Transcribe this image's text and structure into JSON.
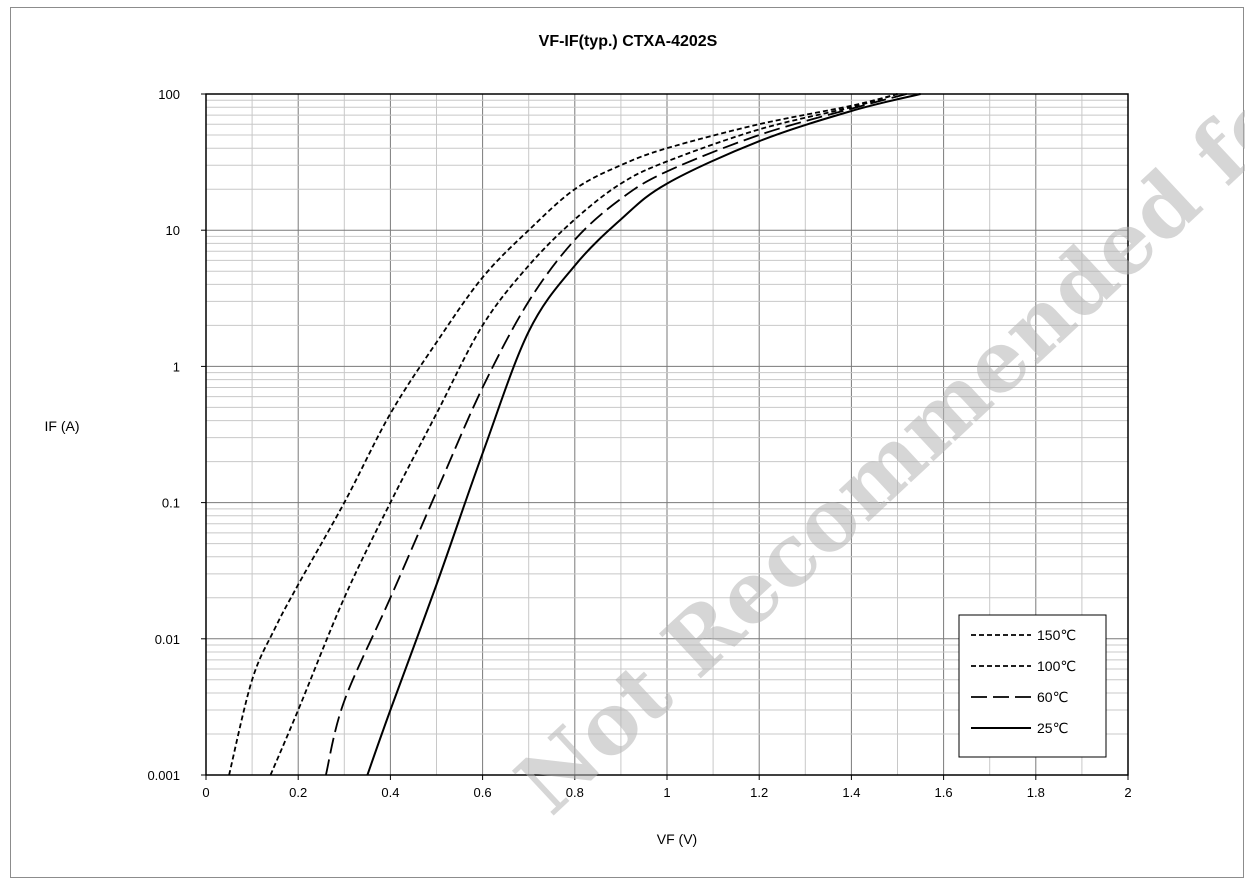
{
  "chart_data": {
    "type": "line",
    "title": "VF-IF(typ.) CTXA-4202S",
    "xlabel": "VF (V)",
    "ylabel": "IF (A)",
    "x_scale": "linear",
    "y_scale": "log",
    "xlim": [
      0,
      2
    ],
    "ylim": [
      0.001,
      100
    ],
    "x_ticks": [
      "0",
      "0.2",
      "0.4",
      "0.6",
      "0.8",
      "1",
      "1.2",
      "1.4",
      "1.6",
      "1.8",
      "2"
    ],
    "y_ticks": [
      "0.001",
      "0.01",
      "0.1",
      "1",
      "10",
      "100"
    ],
    "grid": true,
    "legend_position": "bottom-right",
    "series": [
      {
        "name": "150℃",
        "style": "short-dash",
        "points": [
          [
            0.05,
            0.001
          ],
          [
            0.1,
            0.005
          ],
          [
            0.15,
            0.012
          ],
          [
            0.2,
            0.025
          ],
          [
            0.3,
            0.1
          ],
          [
            0.4,
            0.45
          ],
          [
            0.5,
            1.5
          ],
          [
            0.6,
            4.5
          ],
          [
            0.7,
            10
          ],
          [
            0.8,
            20
          ],
          [
            0.9,
            30
          ],
          [
            1.0,
            40
          ],
          [
            1.2,
            60
          ],
          [
            1.4,
            82
          ],
          [
            1.5,
            100
          ]
        ]
      },
      {
        "name": "100℃",
        "style": "short-dash",
        "points": [
          [
            0.14,
            0.001
          ],
          [
            0.2,
            0.003
          ],
          [
            0.3,
            0.02
          ],
          [
            0.4,
            0.1
          ],
          [
            0.5,
            0.45
          ],
          [
            0.6,
            2
          ],
          [
            0.7,
            5.5
          ],
          [
            0.8,
            12
          ],
          [
            0.9,
            22
          ],
          [
            1.0,
            32
          ],
          [
            1.2,
            55
          ],
          [
            1.4,
            80
          ],
          [
            1.5,
            100
          ]
        ]
      },
      {
        "name": "60℃",
        "style": "long-dash",
        "points": [
          [
            0.26,
            0.001
          ],
          [
            0.3,
            0.0035
          ],
          [
            0.4,
            0.02
          ],
          [
            0.5,
            0.12
          ],
          [
            0.6,
            0.7
          ],
          [
            0.7,
            3
          ],
          [
            0.8,
            8.5
          ],
          [
            0.9,
            17
          ],
          [
            1.0,
            27
          ],
          [
            1.2,
            50
          ],
          [
            1.4,
            78
          ],
          [
            1.52,
            100
          ]
        ]
      },
      {
        "name": "25℃",
        "style": "solid",
        "points": [
          [
            0.35,
            0.001
          ],
          [
            0.4,
            0.003
          ],
          [
            0.5,
            0.025
          ],
          [
            0.6,
            0.23
          ],
          [
            0.7,
            1.8
          ],
          [
            0.8,
            5.5
          ],
          [
            0.9,
            12
          ],
          [
            1.0,
            22
          ],
          [
            1.2,
            45
          ],
          [
            1.4,
            75
          ],
          [
            1.55,
            100
          ]
        ]
      }
    ]
  },
  "watermark_text": "Not Recommended for New Designs"
}
